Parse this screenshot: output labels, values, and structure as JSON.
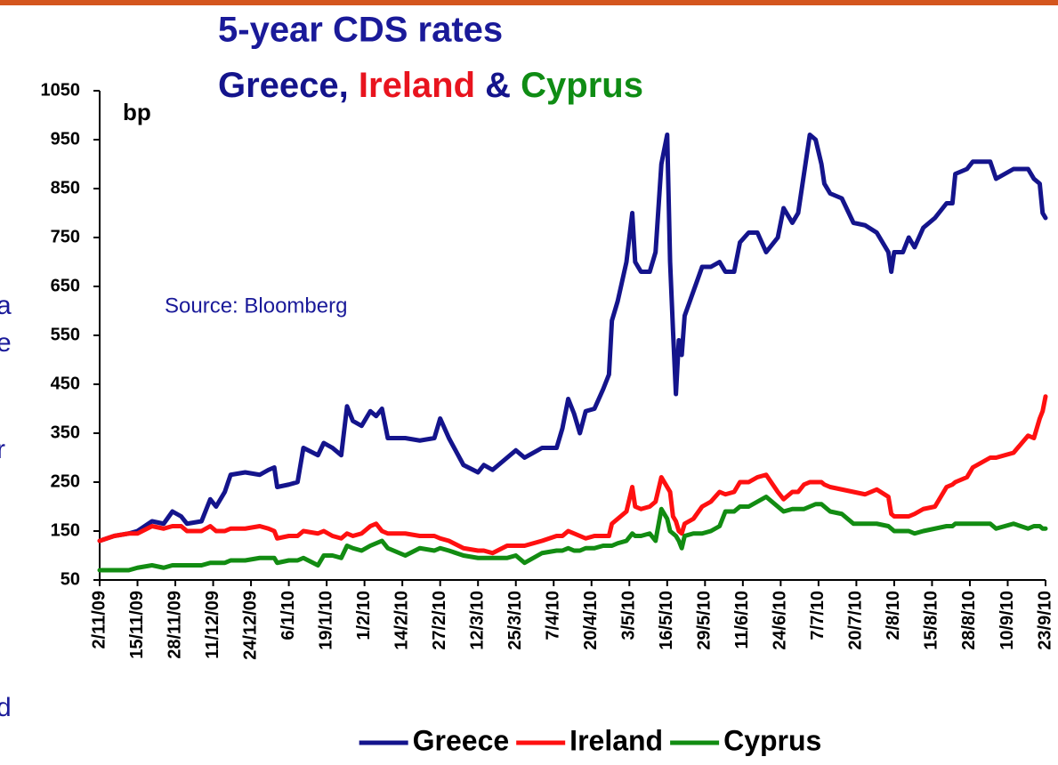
{
  "chart_data": {
    "type": "line",
    "title": "5-year CDS rates",
    "subtitle": [
      {
        "text": "Greece, ",
        "color": "#14148c"
      },
      {
        "text": "Ireland",
        "color": "#e8141e"
      },
      {
        "text": " & ",
        "color": "#14148c"
      },
      {
        "text": "Cyprus",
        "color": "#0f8c14"
      }
    ],
    "y_label": "bp",
    "annotation": "Source: Bloomberg",
    "clipped_text": [
      "a",
      "e",
      "r",
      "d"
    ],
    "x": [
      "2009-11-02",
      "2009-11-07",
      "2009-11-12",
      "2009-11-15",
      "2009-11-20",
      "2009-11-24",
      "2009-11-27",
      "2009-11-30",
      "2009-12-02",
      "2009-12-07",
      "2009-12-10",
      "2009-12-12",
      "2009-12-15",
      "2009-12-17",
      "2009-12-22",
      "2009-12-27",
      "2009-12-30",
      "2010-01-01",
      "2010-01-02",
      "2010-01-06",
      "2010-01-09",
      "2010-01-11",
      "2010-01-16",
      "2010-01-18",
      "2010-01-21",
      "2010-01-24",
      "2010-01-26",
      "2010-01-28",
      "2010-01-31",
      "2010-02-03",
      "2010-02-05",
      "2010-02-07",
      "2010-02-09",
      "2010-02-15",
      "2010-02-20",
      "2010-02-25",
      "2010-02-27",
      "2010-03-02",
      "2010-03-07",
      "2010-03-12",
      "2010-03-14",
      "2010-03-17",
      "2010-03-22",
      "2010-03-25",
      "2010-03-28",
      "2010-04-03",
      "2010-04-08",
      "2010-04-10",
      "2010-04-12",
      "2010-04-14",
      "2010-04-16",
      "2010-04-18",
      "2010-04-21",
      "2010-04-24",
      "2010-04-26",
      "2010-04-27",
      "2010-04-29",
      "2010-05-02",
      "2010-05-04",
      "2010-05-05",
      "2010-05-07",
      "2010-05-10",
      "2010-05-12",
      "2010-05-14",
      "2010-05-16",
      "2010-05-17",
      "2010-05-18",
      "2010-05-19",
      "2010-05-20",
      "2010-05-21",
      "2010-05-22",
      "2010-05-25",
      "2010-05-28",
      "2010-05-31",
      "2010-06-03",
      "2010-06-05",
      "2010-06-08",
      "2010-06-10",
      "2010-06-13",
      "2010-06-16",
      "2010-06-19",
      "2010-06-23",
      "2010-06-25",
      "2010-06-28",
      "2010-06-30",
      "2010-07-02",
      "2010-07-04",
      "2010-07-06",
      "2010-07-08",
      "2010-07-09",
      "2010-07-11",
      "2010-07-15",
      "2010-07-19",
      "2010-07-23",
      "2010-07-27",
      "2010-07-31",
      "2010-08-01",
      "2010-08-02",
      "2010-08-05",
      "2010-08-07",
      "2010-08-09",
      "2010-08-12",
      "2010-08-16",
      "2010-08-20",
      "2010-08-22",
      "2010-08-23",
      "2010-08-27",
      "2010-08-29",
      "2010-09-04",
      "2010-09-06",
      "2010-09-12",
      "2010-09-17",
      "2010-09-19",
      "2010-09-21",
      "2010-09-22",
      "2010-09-23"
    ],
    "series": [
      {
        "name": "Greece",
        "color": "#14148c",
        "values": [
          130,
          140,
          145,
          150,
          170,
          165,
          190,
          180,
          165,
          170,
          215,
          200,
          230,
          265,
          270,
          265,
          275,
          280,
          240,
          245,
          250,
          320,
          305,
          330,
          320,
          305,
          405,
          375,
          365,
          395,
          385,
          400,
          340,
          340,
          335,
          340,
          380,
          340,
          285,
          270,
          285,
          275,
          300,
          315,
          300,
          320,
          320,
          360,
          420,
          390,
          350,
          395,
          400,
          440,
          470,
          580,
          620,
          700,
          800,
          700,
          680,
          680,
          720,
          900,
          960,
          700,
          560,
          430,
          540,
          510,
          590,
          640,
          690,
          690,
          700,
          680,
          680,
          740,
          760,
          760,
          720,
          750,
          810,
          780,
          800,
          880,
          960,
          950,
          900,
          860,
          840,
          830,
          780,
          775,
          760,
          720,
          680,
          720,
          720,
          750,
          730,
          770,
          790,
          820,
          820,
          880,
          890,
          905,
          905,
          870,
          890,
          890,
          870,
          860,
          800,
          790
        ]
      },
      {
        "name": "Ireland",
        "color": "#ff1010",
        "values": [
          130,
          140,
          145,
          145,
          160,
          155,
          160,
          160,
          150,
          150,
          160,
          150,
          150,
          155,
          155,
          160,
          155,
          150,
          135,
          140,
          140,
          150,
          145,
          150,
          140,
          135,
          145,
          140,
          145,
          160,
          165,
          150,
          145,
          145,
          140,
          140,
          135,
          130,
          115,
          110,
          110,
          105,
          120,
          120,
          120,
          130,
          140,
          140,
          150,
          145,
          140,
          135,
          140,
          140,
          140,
          165,
          175,
          190,
          240,
          200,
          195,
          200,
          210,
          260,
          240,
          230,
          180,
          170,
          150,
          145,
          165,
          175,
          200,
          210,
          230,
          225,
          230,
          250,
          250,
          260,
          265,
          230,
          215,
          230,
          230,
          245,
          250,
          250,
          250,
          245,
          240,
          235,
          230,
          225,
          235,
          220,
          185,
          180,
          180,
          180,
          185,
          195,
          200,
          240,
          245,
          250,
          260,
          280,
          300,
          300,
          310,
          345,
          340,
          380,
          395,
          425
        ]
      },
      {
        "name": "Cyprus",
        "color": "#128c12",
        "values": [
          70,
          70,
          70,
          75,
          80,
          75,
          80,
          80,
          80,
          80,
          85,
          85,
          85,
          90,
          90,
          95,
          95,
          95,
          85,
          90,
          90,
          95,
          80,
          100,
          100,
          95,
          120,
          115,
          110,
          120,
          125,
          130,
          115,
          100,
          115,
          110,
          115,
          110,
          100,
          95,
          95,
          95,
          95,
          100,
          85,
          105,
          110,
          110,
          115,
          110,
          110,
          115,
          115,
          120,
          120,
          120,
          125,
          130,
          145,
          140,
          140,
          145,
          130,
          195,
          175,
          150,
          145,
          140,
          130,
          115,
          140,
          145,
          145,
          150,
          160,
          190,
          190,
          200,
          200,
          210,
          220,
          200,
          190,
          195,
          195,
          195,
          200,
          205,
          205,
          200,
          190,
          185,
          165,
          165,
          165,
          160,
          155,
          150,
          150,
          150,
          145,
          150,
          155,
          160,
          160,
          165,
          165,
          165,
          165,
          155,
          165,
          155,
          160,
          160,
          155,
          155
        ]
      }
    ],
    "xlim": [
      "2009-11-02",
      "2010-09-23"
    ],
    "xticks": [
      {
        "value": "2009-11-02",
        "label": "2/11/09"
      },
      {
        "value": "2009-11-15",
        "label": "15/11/09"
      },
      {
        "value": "2009-11-28",
        "label": "28/11/09"
      },
      {
        "value": "2009-12-11",
        "label": "11/12/09"
      },
      {
        "value": "2009-12-24",
        "label": "24/12/09"
      },
      {
        "value": "2010-01-06",
        "label": "6/1/10"
      },
      {
        "value": "2010-01-19",
        "label": "19/1/10"
      },
      {
        "value": "2010-02-01",
        "label": "1/2/10"
      },
      {
        "value": "2010-02-14",
        "label": "14/2/10"
      },
      {
        "value": "2010-02-27",
        "label": "27/2/10"
      },
      {
        "value": "2010-03-12",
        "label": "12/3/10"
      },
      {
        "value": "2010-03-25",
        "label": "25/3/10"
      },
      {
        "value": "2010-04-07",
        "label": "7/4/10"
      },
      {
        "value": "2010-04-20",
        "label": "20/4/10"
      },
      {
        "value": "2010-05-03",
        "label": "3/5/10"
      },
      {
        "value": "2010-05-16",
        "label": "16/5/10"
      },
      {
        "value": "2010-05-29",
        "label": "29/5/10"
      },
      {
        "value": "2010-06-11",
        "label": "11/6/10"
      },
      {
        "value": "2010-06-24",
        "label": "24/6/10"
      },
      {
        "value": "2010-07-07",
        "label": "7/7/10"
      },
      {
        "value": "2010-07-20",
        "label": "20/7/10"
      },
      {
        "value": "2010-08-02",
        "label": "2/8/10"
      },
      {
        "value": "2010-08-15",
        "label": "15/8/10"
      },
      {
        "value": "2010-08-28",
        "label": "28/8/10"
      },
      {
        "value": "2010-09-10",
        "label": "10/9/10"
      },
      {
        "value": "2010-09-23",
        "label": "23/9/10"
      }
    ],
    "ylim": [
      50,
      1050
    ],
    "yticks": [
      50,
      150,
      250,
      350,
      450,
      550,
      650,
      750,
      850,
      950,
      1050
    ],
    "grid": false,
    "legend": "bottom",
    "title_color": "#1a1a99",
    "accent_color": "#d4561e"
  }
}
